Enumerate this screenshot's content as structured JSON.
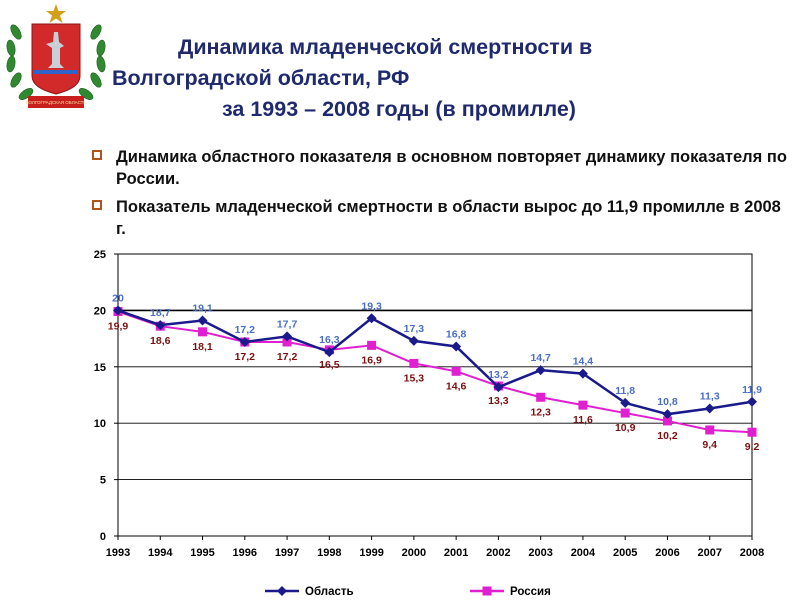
{
  "title": {
    "line1": "Динамика младенческой смертности в",
    "line2": "Волгоградской  области, РФ",
    "line3": "за 1993 – 2008 годы (в промилле)"
  },
  "emblem": {
    "caption": "ВОЛГОГРАДСКАЯ ОБЛАСТЬ"
  },
  "bullets": [
    "Динамика областного показателя в основном повторяет динамику показателя по России.",
    "Показатель младенческой смертности в области вырос до  11,9 промилле в 2008 г."
  ],
  "chart_data": {
    "type": "line",
    "categories": [
      "1993",
      "1994",
      "1995",
      "1996",
      "1997",
      "1998",
      "1999",
      "2000",
      "2001",
      "2002",
      "2003",
      "2004",
      "2005",
      "2006",
      "2007",
      "2008"
    ],
    "ylim": [
      0,
      25
    ],
    "yticks": [
      "0",
      "5",
      "10",
      "15",
      "20",
      "25"
    ],
    "grid": true,
    "legend_position": "bottom",
    "series": [
      {
        "name": "Область",
        "color": "#1a1a8c",
        "label_color": "#4a6fc4",
        "marker": "diamond",
        "values": [
          20,
          18.7,
          19.1,
          17.2,
          17.7,
          16.3,
          19.3,
          17.3,
          16.8,
          13.2,
          14.7,
          14.4,
          11.8,
          10.8,
          11.3,
          11.9
        ],
        "labels": [
          "20",
          "18,7",
          "19,1",
          "17,2",
          "17,7",
          "16,3",
          "19,3",
          "17,3",
          "16,8",
          "13,2",
          "14,7",
          "14,4",
          "11,8",
          "10,8",
          "11,3",
          "11,9"
        ]
      },
      {
        "name": "Россия",
        "color": "#e020d0",
        "label_color": "#7a1010",
        "marker": "square",
        "values": [
          19.9,
          18.6,
          18.1,
          17.2,
          17.2,
          16.5,
          16.9,
          15.3,
          14.6,
          13.3,
          12.3,
          11.6,
          10.9,
          10.2,
          9.4,
          9.2
        ],
        "labels": [
          "19,9",
          "18,6",
          "18,1",
          "17,2",
          "17,2",
          "16,5",
          "16,9",
          "15,3",
          "14,6",
          "13,3",
          "12,3",
          "11,6",
          "10,9",
          "10,2",
          "9,4",
          "9,2"
        ]
      }
    ]
  }
}
